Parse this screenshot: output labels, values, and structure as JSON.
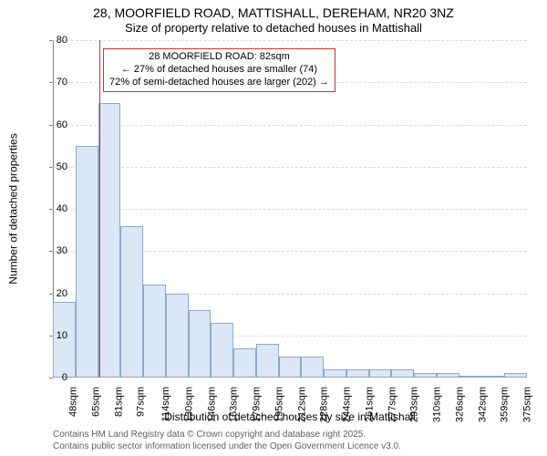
{
  "title": "28, MOORFIELD ROAD, MATTISHALL, DEREHAM, NR20 3NZ",
  "subtitle": "Size of property relative to detached houses in Mattishall",
  "x_axis_label": "Distribution of detached houses by size in Mattishall",
  "y_axis_label": "Number of detached properties",
  "chart": {
    "type": "histogram",
    "background_color": "#ffffff",
    "grid_color": "#d9d9d9",
    "axis_color": "#808080",
    "bar_fill": "#dbe7f6",
    "bar_border": "#8fa8c8",
    "refline_color": "#d93030",
    "ylim": [
      0,
      80
    ],
    "ytick_step": 10,
    "categories": [
      "48sqm",
      "65sqm",
      "81sqm",
      "97sqm",
      "114sqm",
      "130sqm",
      "146sqm",
      "163sqm",
      "179sqm",
      "195sqm",
      "212sqm",
      "228sqm",
      "244sqm",
      "261sqm",
      "277sqm",
      "293sqm",
      "310sqm",
      "326sqm",
      "342sqm",
      "359sqm",
      "375sqm"
    ],
    "values": [
      18,
      55,
      65,
      36,
      22,
      20,
      16,
      13,
      7,
      8,
      5,
      5,
      2,
      2,
      2,
      2,
      1,
      1,
      0,
      0,
      1
    ],
    "reference_index": 2,
    "reference_fraction_into_bin": 0.06
  },
  "annotation": {
    "line1": "28 MOORFIELD ROAD: 82sqm",
    "line2": "← 27% of detached houses are smaller (74)",
    "line3": "72% of semi-detached houses are larger (202) →",
    "border_color": "#d93030",
    "background": "#ffffff",
    "font_size": 11,
    "top_y_value": 78
  },
  "footnote1": "Contains HM Land Registry data © Crown copyright and database right 2025.",
  "footnote2": "Contains public sector information licensed under the Open Government Licence v3.0.",
  "typography": {
    "title_fontsize": 14,
    "subtitle_fontsize": 13,
    "tick_fontsize": 11,
    "axis_label_fontsize": 12,
    "footnote_fontsize": 10,
    "footnote_color": "#606060"
  }
}
